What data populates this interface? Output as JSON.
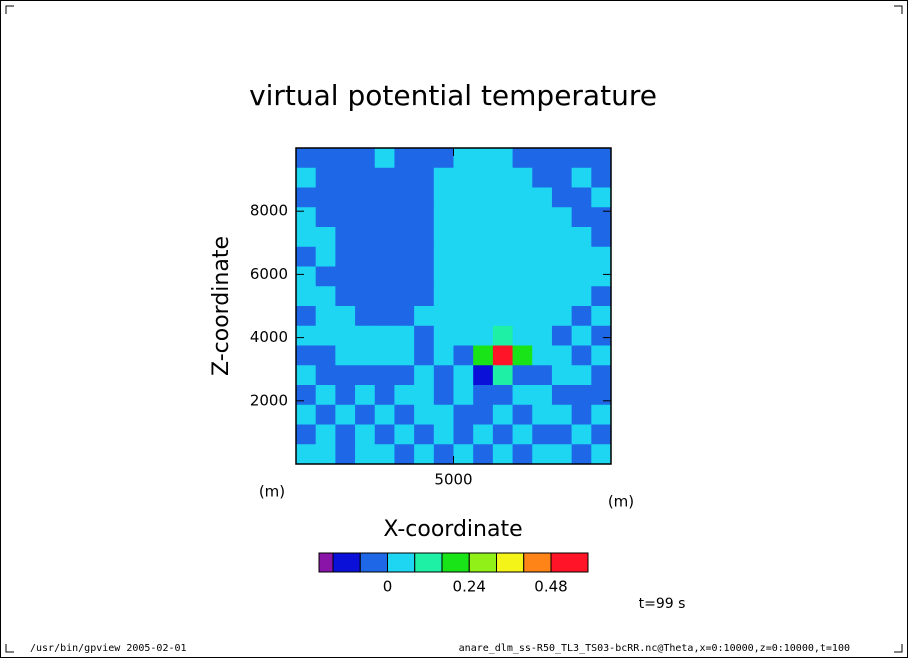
{
  "chart_data": {
    "type": "contour",
    "title": "virtual potential temperature",
    "xlabel": "X-coordinate",
    "ylabel": "Z-coordinate",
    "x_unit": "(m)",
    "y_unit": "(m)",
    "xlim": [
      0,
      10000
    ],
    "ylim": [
      0,
      10000
    ],
    "xticks": [
      5000
    ],
    "yticks": [
      2000,
      4000,
      6000,
      8000
    ],
    "x": [
      312.5,
      937.5,
      1562.5,
      2187.5,
      2812.5,
      3437.5,
      4062.5,
      4687.5,
      5312.5,
      5937.5,
      6562.5,
      7187.5,
      7812.5,
      8437.5,
      9062.5,
      9687.5
    ],
    "y": [
      9687.5,
      9062.5,
      8437.5,
      7812.5,
      7187.5,
      6562.5,
      5937.5,
      5312.5,
      4687.5,
      4062.5,
      3437.5,
      2812.5,
      2187.5,
      1562.5,
      937.5,
      312.5
    ],
    "z": [
      [
        -0.04,
        -0.04,
        -0.04,
        -0.04,
        0.04,
        -0.04,
        -0.04,
        -0.04,
        0.04,
        0.04,
        0.04,
        -0.04,
        -0.04,
        -0.04,
        -0.04,
        -0.04
      ],
      [
        0.04,
        -0.04,
        -0.04,
        -0.04,
        -0.04,
        -0.04,
        -0.04,
        0.04,
        0.04,
        0.04,
        0.04,
        0.04,
        -0.04,
        -0.04,
        0.04,
        -0.04
      ],
      [
        -0.04,
        -0.04,
        -0.04,
        -0.04,
        -0.04,
        -0.04,
        -0.04,
        0.04,
        0.04,
        0.04,
        0.04,
        0.04,
        0.04,
        -0.04,
        -0.04,
        0.04
      ],
      [
        0.04,
        -0.04,
        -0.04,
        -0.04,
        -0.04,
        -0.04,
        -0.04,
        0.04,
        0.04,
        0.04,
        0.04,
        0.04,
        0.04,
        0.04,
        -0.04,
        -0.04
      ],
      [
        0.04,
        0.04,
        -0.04,
        -0.04,
        -0.04,
        -0.04,
        -0.04,
        0.04,
        0.04,
        0.04,
        0.04,
        0.04,
        0.04,
        0.04,
        0.04,
        -0.04
      ],
      [
        -0.04,
        0.04,
        -0.04,
        -0.04,
        -0.04,
        -0.04,
        -0.04,
        0.04,
        0.04,
        0.04,
        0.04,
        0.04,
        0.04,
        0.04,
        0.04,
        0.04
      ],
      [
        0.04,
        -0.04,
        -0.04,
        -0.04,
        -0.04,
        -0.04,
        -0.04,
        0.04,
        0.04,
        0.04,
        0.04,
        0.04,
        0.04,
        0.04,
        0.04,
        0.04
      ],
      [
        0.04,
        0.04,
        -0.04,
        -0.04,
        -0.04,
        -0.04,
        -0.04,
        0.04,
        0.04,
        0.04,
        0.04,
        0.04,
        0.04,
        0.04,
        0.04,
        -0.04
      ],
      [
        -0.04,
        0.04,
        0.04,
        -0.04,
        -0.04,
        -0.04,
        0.04,
        0.04,
        0.04,
        0.04,
        0.04,
        0.04,
        0.04,
        0.04,
        -0.04,
        0.04
      ],
      [
        0.04,
        0.04,
        0.04,
        0.04,
        0.04,
        0.04,
        -0.04,
        0.04,
        0.04,
        0.04,
        0.12,
        0.04,
        0.04,
        -0.04,
        0.04,
        -0.04
      ],
      [
        -0.04,
        -0.04,
        0.04,
        0.04,
        0.04,
        0.04,
        -0.04,
        0.04,
        -0.04,
        0.2,
        0.52,
        0.2,
        0.04,
        0.04,
        -0.04,
        0.04
      ],
      [
        0.04,
        -0.04,
        -0.04,
        -0.04,
        -0.04,
        -0.04,
        0.04,
        -0.04,
        0.04,
        -0.12,
        0.12,
        -0.04,
        -0.04,
        0.04,
        0.04,
        -0.04
      ],
      [
        -0.04,
        0.04,
        -0.04,
        0.04,
        -0.04,
        0.04,
        0.04,
        -0.04,
        0.04,
        -0.04,
        -0.04,
        0.04,
        0.04,
        -0.04,
        -0.04,
        -0.04
      ],
      [
        0.04,
        -0.04,
        0.04,
        -0.04,
        0.04,
        -0.04,
        0.04,
        0.04,
        -0.04,
        -0.04,
        0.04,
        -0.04,
        0.04,
        0.04,
        -0.04,
        0.04
      ],
      [
        -0.04,
        0.04,
        -0.04,
        0.04,
        -0.04,
        0.04,
        -0.04,
        0.04,
        -0.04,
        0.04,
        -0.04,
        0.04,
        -0.04,
        -0.04,
        0.04,
        -0.04
      ],
      [
        0.04,
        0.04,
        -0.04,
        0.04,
        0.04,
        -0.04,
        0.04,
        -0.04,
        0.04,
        -0.04,
        0.04,
        -0.04,
        0.04,
        0.04,
        -0.04,
        0.04
      ]
    ],
    "levels": [
      -0.16,
      -0.08,
      0,
      0.08,
      0.16,
      0.24,
      0.32,
      0.4,
      0.48
    ],
    "colors": [
      "#8a14a8",
      "#0a10d8",
      "#1e68e8",
      "#1ed6f2",
      "#1ef0a6",
      "#18e418",
      "#90f018",
      "#f4f418",
      "#ff8418",
      "#ff1428"
    ],
    "colorbar_ticks": [
      0,
      0.24,
      0.48
    ],
    "time_label": "t=99 s",
    "footer_left": "/usr/bin/gpview  2005-02-01",
    "footer_right": "anare_dlm_ss-R50_TL3_TS03-bcRR.nc@Theta,x=0:10000,z=0:10000,t=100"
  }
}
